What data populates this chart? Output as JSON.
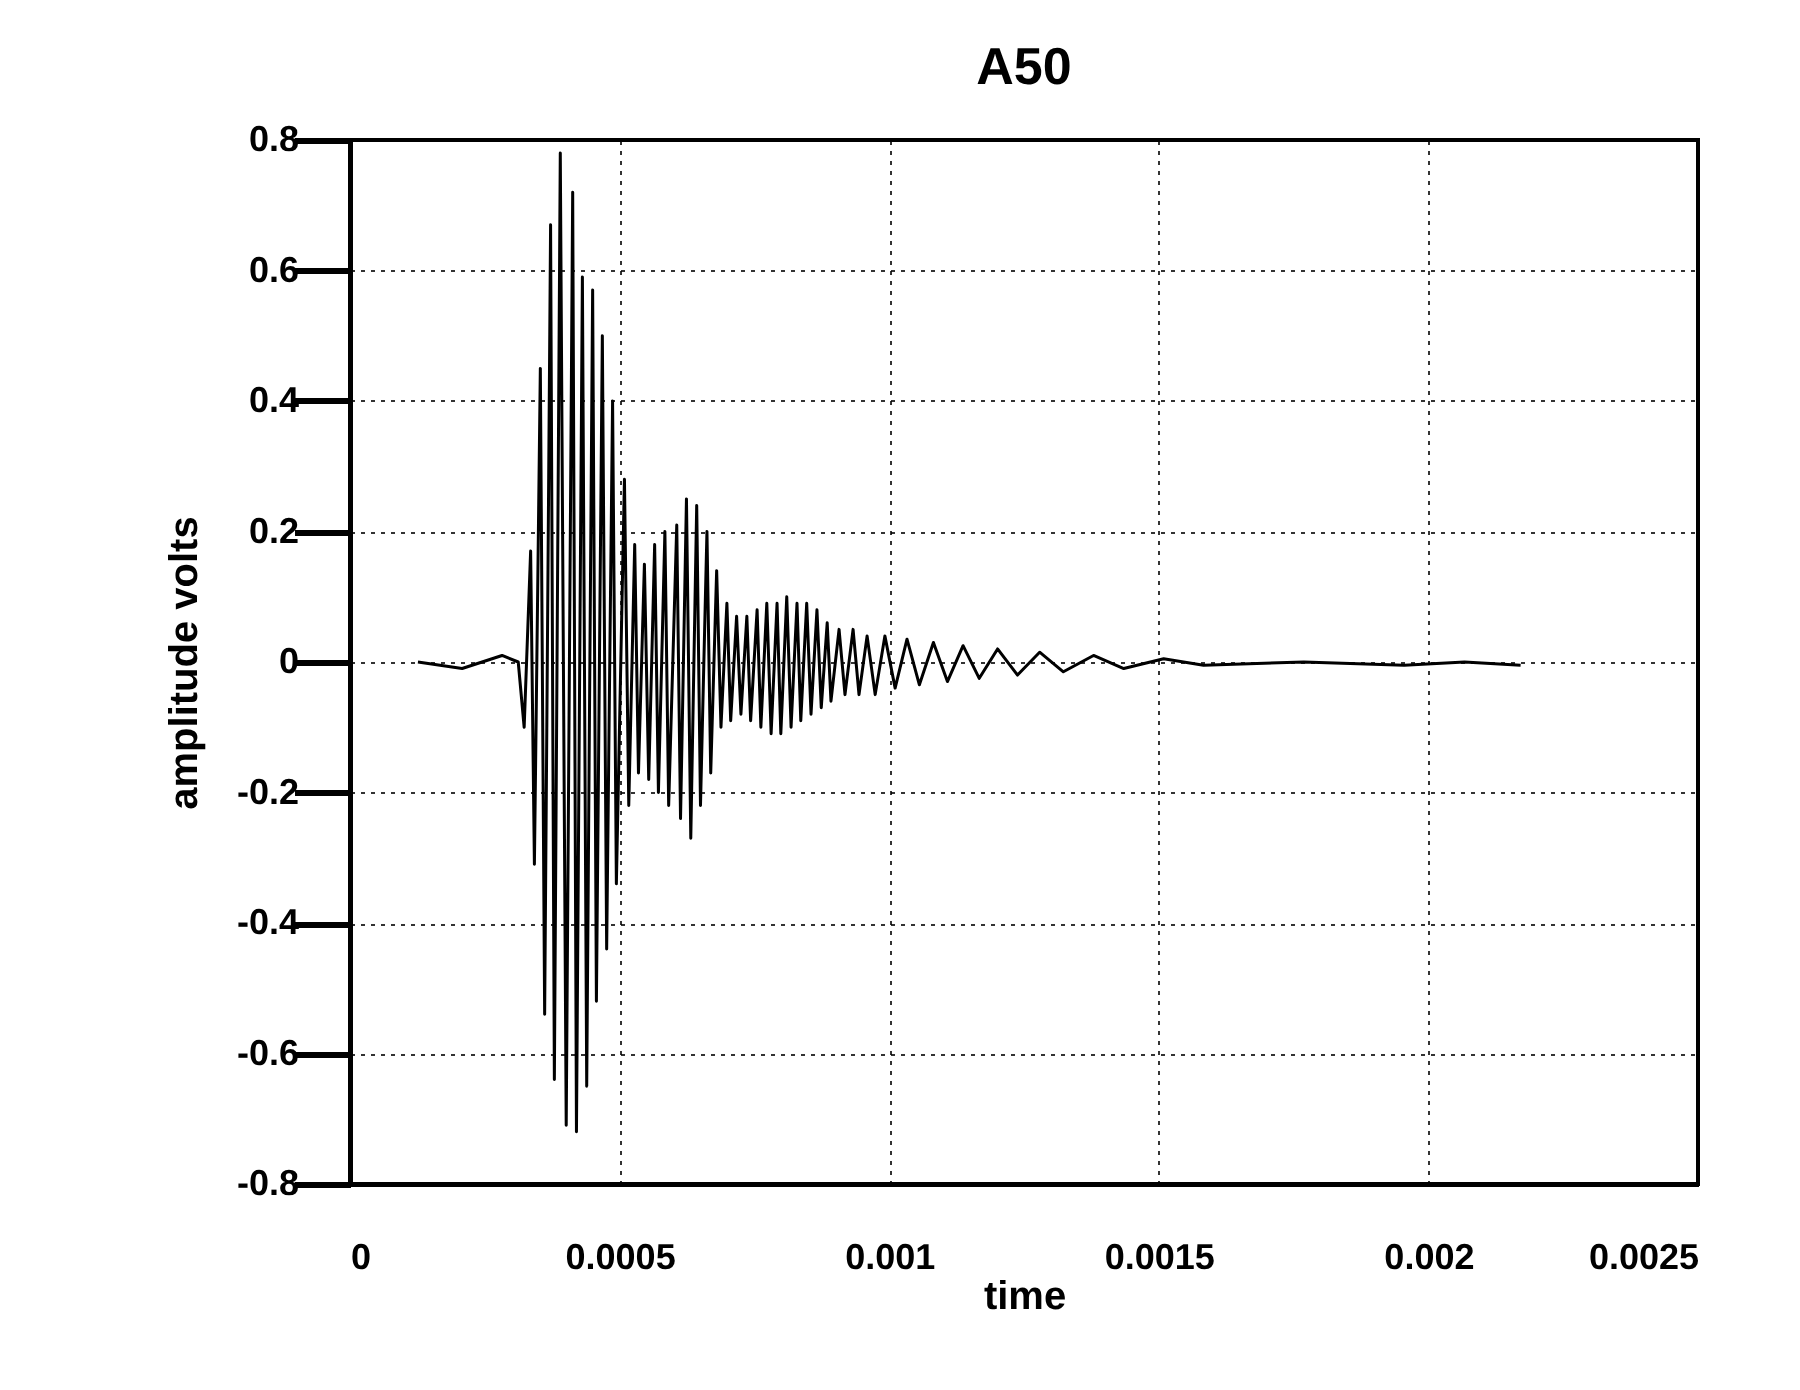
{
  "chart_data": {
    "type": "line",
    "title": "A50",
    "xlabel": "time",
    "ylabel": "amplitude volts",
    "xlim": [
      0,
      0.0025
    ],
    "xticks": [
      0,
      0.0005,
      0.001,
      0.0015,
      0.002,
      0.0025
    ],
    "ylim": [
      -0.8,
      0.8
    ],
    "yticks": [
      -0.8,
      -0.6,
      -0.4,
      -0.2,
      0,
      0.2,
      0.4,
      0.6,
      0.8
    ],
    "grid": true,
    "line_style": "solid",
    "marker": "none",
    "x": [
      0.000126,
      0.000208,
      0.000282,
      0.000312,
      0.000323,
      0.000335,
      0.000342,
      0.000353,
      0.000361,
      0.000372,
      0.000379,
      0.00039,
      0.000401,
      0.000413,
      0.00042,
      0.000431,
      0.000439,
      0.00045,
      0.000457,
      0.000468,
      0.000476,
      0.000487,
      0.000494,
      0.000509,
      0.000517,
      0.000528,
      0.000535,
      0.000546,
      0.000554,
      0.000565,
      0.000572,
      0.000584,
      0.000591,
      0.000606,
      0.000613,
      0.000624,
      0.000632,
      0.000643,
      0.00065,
      0.000662,
      0.000669,
      0.00068,
      0.000688,
      0.000699,
      0.000706,
      0.000717,
      0.000725,
      0.000736,
      0.000743,
      0.000755,
      0.000762,
      0.000773,
      0.000781,
      0.000792,
      0.000799,
      0.00081,
      0.000818,
      0.000829,
      0.000836,
      0.000847,
      0.000855,
      0.000866,
      0.000874,
      0.000885,
      0.000892,
      0.000907,
      0.000918,
      0.000933,
      0.000944,
      0.000959,
      0.000974,
      0.000992,
      0.001011,
      0.001033,
      0.001056,
      0.001082,
      0.001108,
      0.001137,
      0.001167,
      0.001201,
      0.001238,
      0.001279,
      0.001323,
      0.001379,
      0.001435,
      0.001509,
      0.001583,
      0.001769,
      0.001955,
      0.002067,
      0.002171
    ],
    "series": [
      {
        "color": "#000000",
        "values": [
          0,
          -0.01,
          0.01,
          0,
          -0.1,
          0.17,
          -0.31,
          0.45,
          -0.54,
          0.67,
          -0.64,
          0.78,
          -0.71,
          0.72,
          -0.72,
          0.59,
          -0.65,
          0.57,
          -0.52,
          0.5,
          -0.44,
          0.4,
          -0.34,
          0.28,
          -0.22,
          0.18,
          -0.17,
          0.15,
          -0.18,
          0.18,
          -0.2,
          0.2,
          -0.22,
          0.21,
          -0.24,
          0.25,
          -0.27,
          0.24,
          -0.22,
          0.2,
          -0.17,
          0.14,
          -0.1,
          0.09,
          -0.09,
          0.07,
          -0.08,
          0.07,
          -0.09,
          0.08,
          -0.1,
          0.09,
          -0.11,
          0.09,
          -0.11,
          0.1,
          -0.1,
          0.09,
          -0.09,
          0.09,
          -0.08,
          0.08,
          -0.07,
          0.06,
          -0.06,
          0.05,
          -0.05,
          0.05,
          -0.05,
          0.04,
          -0.05,
          0.04,
          -0.04,
          0.035,
          -0.035,
          0.03,
          -0.03,
          0.025,
          -0.025,
          0.02,
          -0.02,
          0.015,
          -0.015,
          0.01,
          -0.01,
          0.005,
          -0.005,
          0,
          -0.005,
          0,
          -0.005
        ]
      }
    ]
  }
}
